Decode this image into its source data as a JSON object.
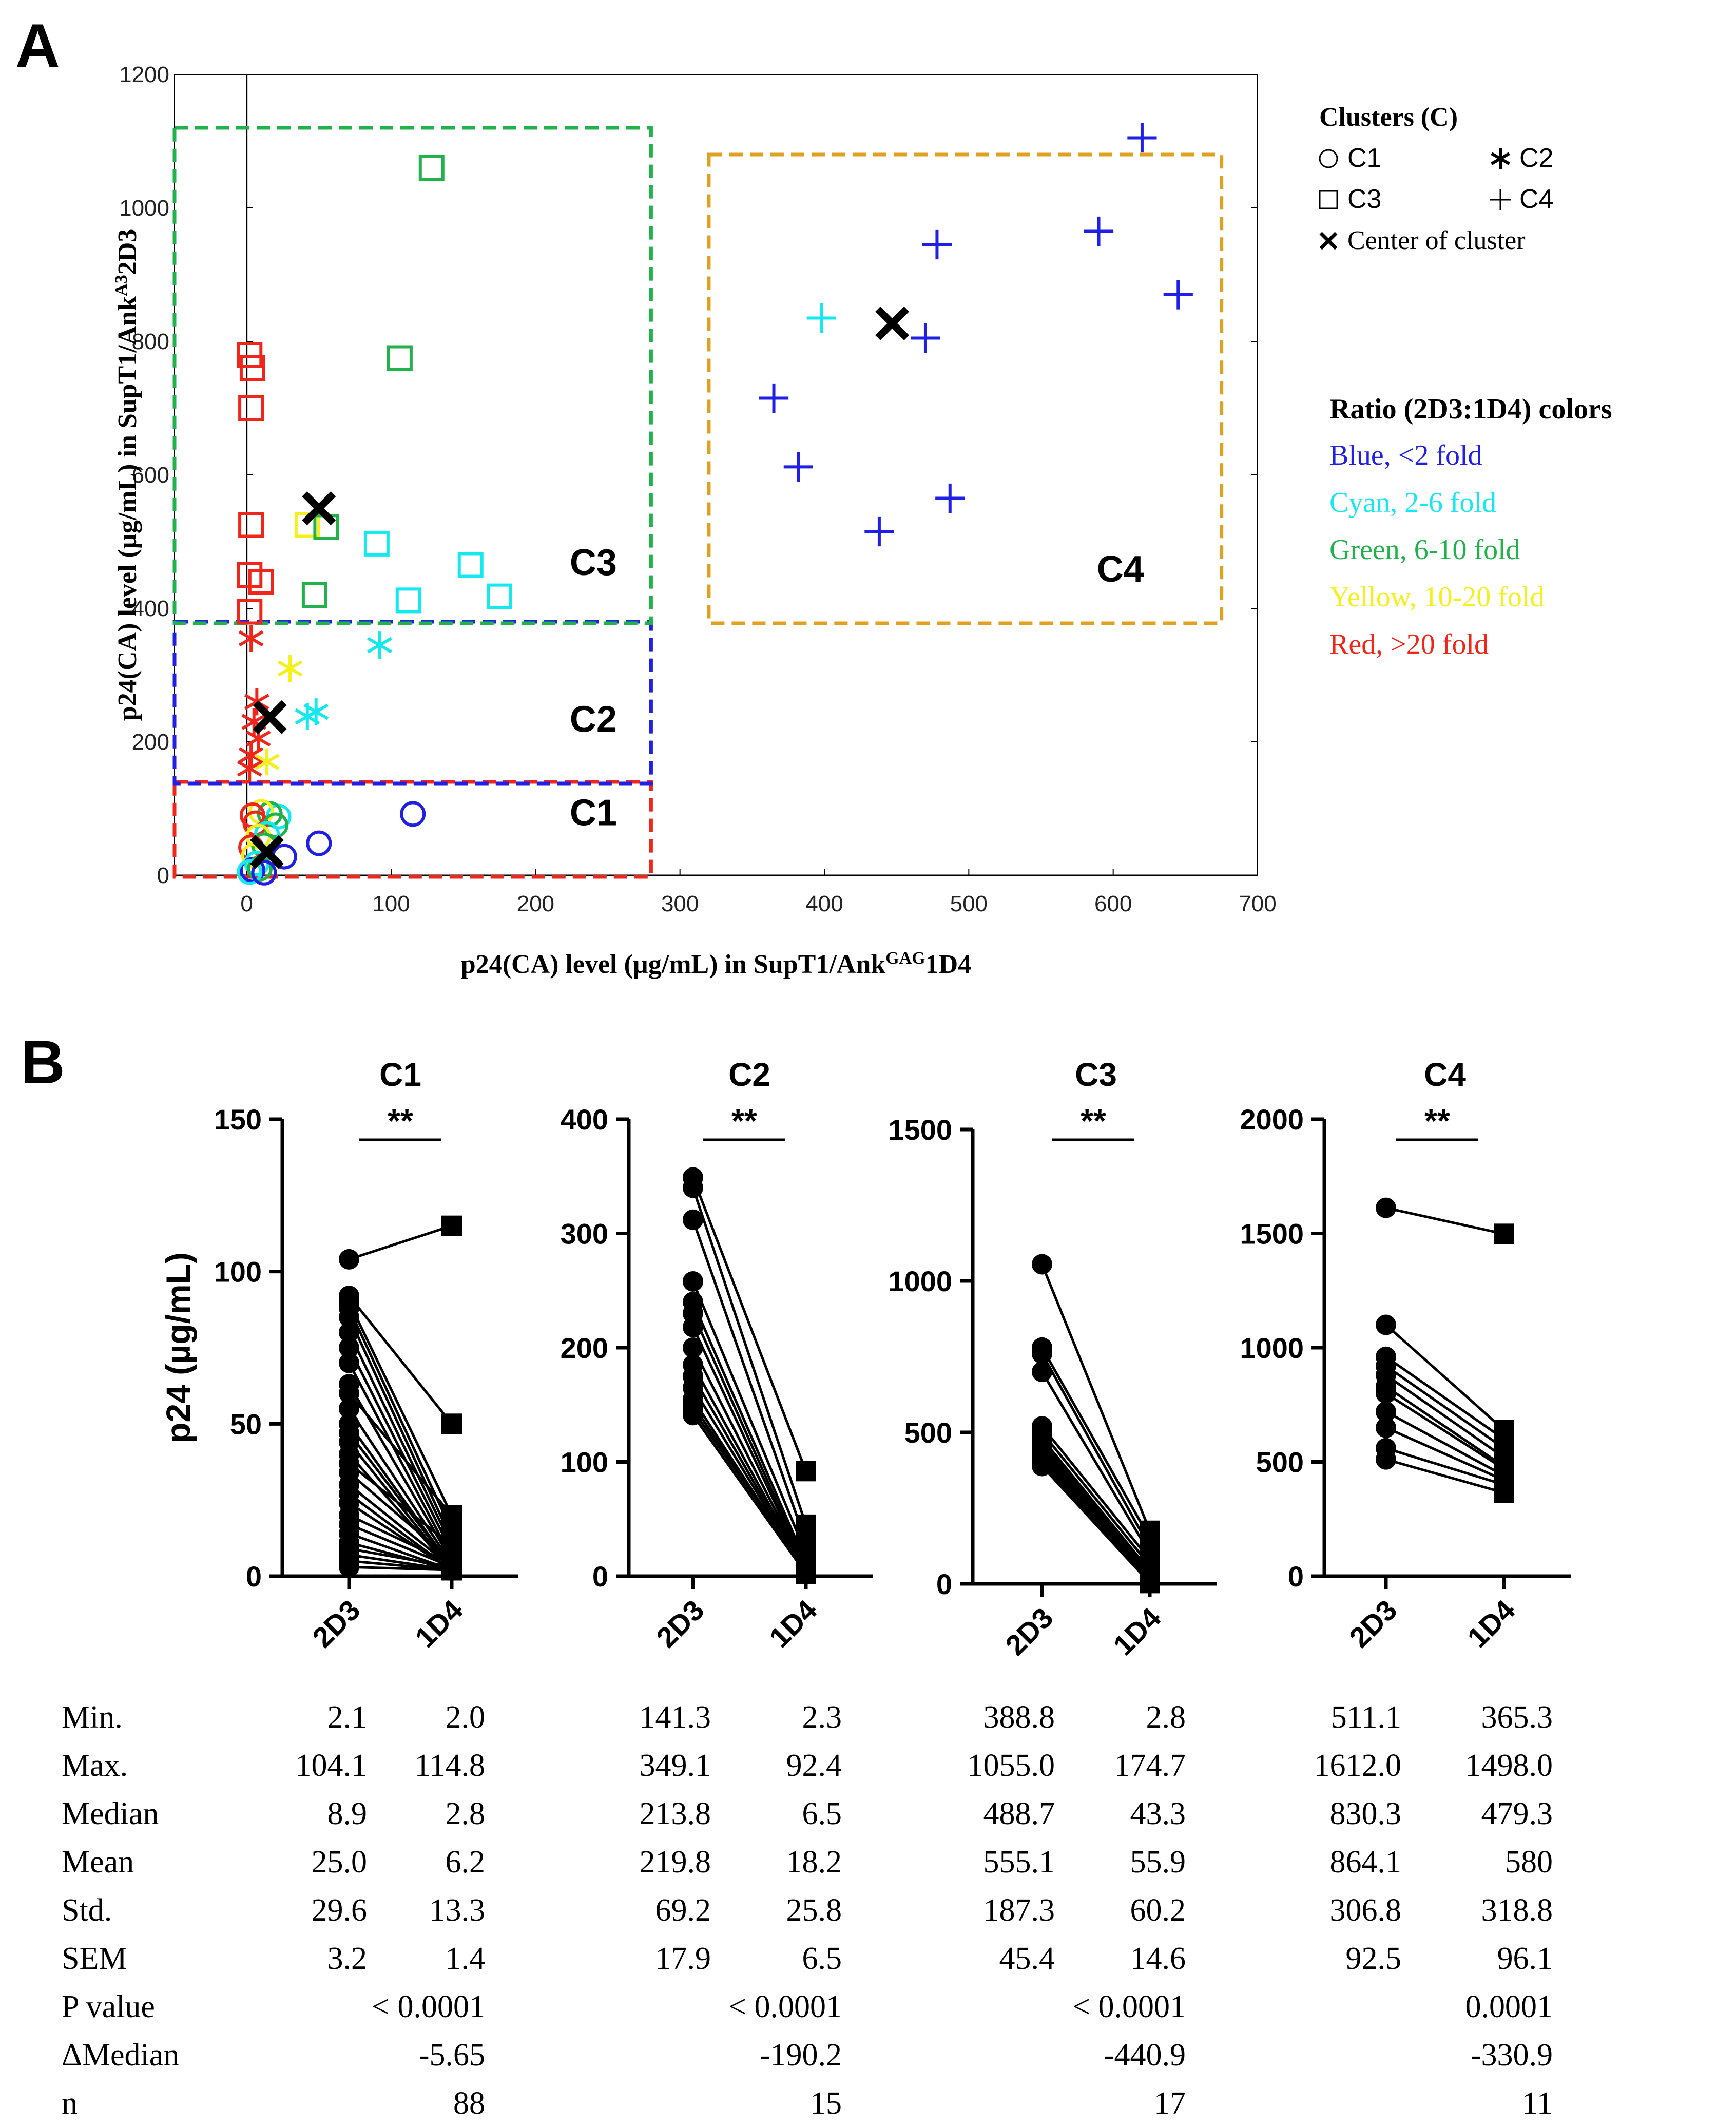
{
  "panel_a": {
    "letter": "A",
    "legend_clusters": {
      "title": "Clusters  (C)",
      "items": [
        {
          "symbol": "circle",
          "label": "C1"
        },
        {
          "symbol": "asterisk",
          "label": "C2"
        },
        {
          "symbol": "square",
          "label": "C3"
        },
        {
          "symbol": "plus",
          "label": "C4"
        },
        {
          "symbol": "x",
          "label": "Center of cluster"
        }
      ]
    },
    "legend_colors": {
      "title": "Ratio (2D3:1D4) colors",
      "items": [
        {
          "label": "Blue, <2 fold",
          "color": "#1f1fe6"
        },
        {
          "label": "Cyan, 2-6 fold",
          "color": "#14e8f0"
        },
        {
          "label": "Green, 6-10 fold",
          "color": "#22b24c"
        },
        {
          "label": "Yellow, 10-20 fold",
          "color": "#f5f01a"
        },
        {
          "label": "Red, >20 fold",
          "color": "#f0261a"
        }
      ]
    }
  },
  "panel_b": {
    "letter": "B",
    "stat_rows": [
      "Min.",
      "Max.",
      "Median",
      "Mean",
      "Std.",
      "SEM",
      "P value",
      "ΔMedian",
      "n"
    ]
  },
  "chart_data": [
    {
      "type": "scatter",
      "xlabel": "p24(CA) level (µg/mL) in SupT1/Ank",
      "xlabel_sup": "GAG",
      "xlabel_tail": "1D4",
      "ylabel": "p24(CA) level (µg/mL) in SupT1/Ank",
      "ylabel_sup": "A3",
      "ylabel_tail": "2D3",
      "xlim": [
        -50,
        700
      ],
      "ylim": [
        0,
        1200
      ],
      "xticks": [
        0,
        100,
        200,
        300,
        400,
        500,
        600,
        700
      ],
      "yticks": [
        0,
        200,
        400,
        600,
        800,
        1000,
        1200
      ],
      "colors": {
        "blue": "#1f1fe6",
        "cyan": "#14e8f0",
        "green": "#22b24c",
        "yellow": "#f5f01a",
        "red": "#f0261a",
        "black": "#000000"
      },
      "cluster_boxes": [
        {
          "label": "C1",
          "color": "#f0261a",
          "x0": -50,
          "x1": 280,
          "y0": 0,
          "y1": 140
        },
        {
          "label": "C2",
          "color": "#1f1fe6",
          "x0": -50,
          "x1": 280,
          "y0": 140,
          "y1": 380
        },
        {
          "label": "C3",
          "color": "#22b24c",
          "x0": -50,
          "x1": 280,
          "y0": 380,
          "y1": 1120
        },
        {
          "label": "C4",
          "color": "#e0a020",
          "x0": 320,
          "x1": 675,
          "y0": 380,
          "y1": 1080
        }
      ],
      "cluster_labels": [
        {
          "text": "C1",
          "x": 240,
          "y": 75
        },
        {
          "text": "C2",
          "x": 240,
          "y": 215
        },
        {
          "text": "C3",
          "x": 240,
          "y": 450
        },
        {
          "text": "C4",
          "x": 605,
          "y": 440
        }
      ],
      "points": [
        {
          "cluster": "C4",
          "color": "blue",
          "x": 620,
          "y": 1105
        },
        {
          "cluster": "C4",
          "color": "blue",
          "x": 590,
          "y": 965
        },
        {
          "cluster": "C4",
          "color": "blue",
          "x": 645,
          "y": 870
        },
        {
          "cluster": "C4",
          "color": "blue",
          "x": 478,
          "y": 945
        },
        {
          "cluster": "C4",
          "color": "blue",
          "x": 470,
          "y": 805
        },
        {
          "cluster": "C4",
          "color": "cyan",
          "x": 398,
          "y": 835
        },
        {
          "cluster": "C4",
          "color": "blue",
          "x": 365,
          "y": 715
        },
        {
          "cluster": "C4",
          "color": "blue",
          "x": 382,
          "y": 612
        },
        {
          "cluster": "C4",
          "color": "blue",
          "x": 487,
          "y": 565
        },
        {
          "cluster": "C4",
          "color": "blue",
          "x": 438,
          "y": 515
        },
        {
          "cluster": "C3",
          "color": "green",
          "x": 128,
          "y": 1060
        },
        {
          "cluster": "C3",
          "color": "green",
          "x": 106,
          "y": 775
        },
        {
          "cluster": "C3",
          "color": "red",
          "x": 2,
          "y": 780
        },
        {
          "cluster": "C3",
          "color": "red",
          "x": 4,
          "y": 760
        },
        {
          "cluster": "C3",
          "color": "red",
          "x": 3,
          "y": 700
        },
        {
          "cluster": "C3",
          "color": "red",
          "x": 3,
          "y": 525
        },
        {
          "cluster": "C3",
          "color": "yellow",
          "x": 42,
          "y": 525
        },
        {
          "cluster": "C3",
          "color": "green",
          "x": 55,
          "y": 522
        },
        {
          "cluster": "C3",
          "color": "cyan",
          "x": 90,
          "y": 497
        },
        {
          "cluster": "C3",
          "color": "cyan",
          "x": 155,
          "y": 465
        },
        {
          "cluster": "C3",
          "color": "red",
          "x": 2,
          "y": 450
        },
        {
          "cluster": "C3",
          "color": "red",
          "x": 10,
          "y": 440
        },
        {
          "cluster": "C3",
          "color": "green",
          "x": 47,
          "y": 420
        },
        {
          "cluster": "C3",
          "color": "cyan",
          "x": 112,
          "y": 412
        },
        {
          "cluster": "C3",
          "color": "cyan",
          "x": 175,
          "y": 418
        },
        {
          "cluster": "C3",
          "color": "red",
          "x": 2,
          "y": 395
        },
        {
          "cluster": "C2",
          "color": "red",
          "x": 3,
          "y": 355
        },
        {
          "cluster": "C2",
          "color": "cyan",
          "x": 92,
          "y": 345
        },
        {
          "cluster": "C2",
          "color": "yellow",
          "x": 30,
          "y": 310
        },
        {
          "cluster": "C2",
          "color": "red",
          "x": 7,
          "y": 260
        },
        {
          "cluster": "C2",
          "color": "cyan",
          "x": 48,
          "y": 245
        },
        {
          "cluster": "C2",
          "color": "cyan",
          "x": 42,
          "y": 238
        },
        {
          "cluster": "C2",
          "color": "red",
          "x": 5,
          "y": 230
        },
        {
          "cluster": "C2",
          "color": "red",
          "x": 8,
          "y": 205
        },
        {
          "cluster": "C2",
          "color": "red",
          "x": 3,
          "y": 180
        },
        {
          "cluster": "C2",
          "color": "yellow",
          "x": 14,
          "y": 170
        },
        {
          "cluster": "C2",
          "color": "red",
          "x": 2,
          "y": 160
        },
        {
          "cluster": "C1",
          "color": "blue",
          "x": 115,
          "y": 92
        },
        {
          "cluster": "C1",
          "color": "blue",
          "x": 50,
          "y": 48
        },
        {
          "cluster": "C1",
          "color": "cyan",
          "x": 22,
          "y": 88
        },
        {
          "cluster": "C1",
          "color": "green",
          "x": 16,
          "y": 92
        },
        {
          "cluster": "C1",
          "color": "yellow",
          "x": 10,
          "y": 95
        },
        {
          "cluster": "C1",
          "color": "red",
          "x": 4,
          "y": 90
        },
        {
          "cluster": "C1",
          "color": "red",
          "x": 6,
          "y": 78
        },
        {
          "cluster": "C1",
          "color": "green",
          "x": 20,
          "y": 75
        },
        {
          "cluster": "C1",
          "color": "cyan",
          "x": 14,
          "y": 62
        },
        {
          "cluster": "C1",
          "color": "yellow",
          "x": 8,
          "y": 58
        },
        {
          "cluster": "C1",
          "color": "green",
          "x": 12,
          "y": 45
        },
        {
          "cluster": "C1",
          "color": "blue",
          "x": 26,
          "y": 28
        },
        {
          "cluster": "C1",
          "color": "red",
          "x": 3,
          "y": 42
        },
        {
          "cluster": "C1",
          "color": "yellow",
          "x": 5,
          "y": 30
        },
        {
          "cluster": "C1",
          "color": "cyan",
          "x": 7,
          "y": 18
        },
        {
          "cluster": "C1",
          "color": "blue",
          "x": 4,
          "y": 8
        },
        {
          "cluster": "C1",
          "color": "green",
          "x": 9,
          "y": 10
        },
        {
          "cluster": "C1",
          "color": "cyan",
          "x": 2,
          "y": 5
        },
        {
          "cluster": "C1",
          "color": "blue",
          "x": 12,
          "y": 4
        }
      ],
      "centers": [
        {
          "cluster": "C3",
          "x": 50,
          "y": 550
        },
        {
          "cluster": "C2",
          "x": 16,
          "y": 237
        },
        {
          "cluster": "C1",
          "x": 14,
          "y": 35
        },
        {
          "cluster": "C4",
          "x": 447,
          "y": 827
        }
      ]
    },
    {
      "type": "line",
      "title": "C1",
      "ylabel": "p24 (µg/mL)",
      "categories": [
        "2D3",
        "1D4"
      ],
      "ylim": [
        0,
        150
      ],
      "yticks": [
        0,
        50,
        100,
        150
      ],
      "significance": "**",
      "pairs": [
        [
          104,
          115
        ],
        [
          92,
          50
        ],
        [
          90,
          20
        ],
        [
          88,
          15
        ],
        [
          85,
          12
        ],
        [
          80,
          10
        ],
        [
          75,
          8
        ],
        [
          70,
          6
        ],
        [
          63,
          5
        ],
        [
          60,
          20
        ],
        [
          55,
          4
        ],
        [
          50,
          3
        ],
        [
          47,
          3
        ],
        [
          44,
          2
        ],
        [
          40,
          2
        ],
        [
          37,
          10
        ],
        [
          34,
          5
        ],
        [
          30,
          3
        ],
        [
          27,
          2
        ],
        [
          24,
          2
        ],
        [
          20,
          4
        ],
        [
          17,
          3
        ],
        [
          14,
          2
        ],
        [
          11,
          2
        ],
        [
          9,
          3
        ],
        [
          7,
          2
        ],
        [
          5,
          2
        ],
        [
          3,
          2
        ]
      ],
      "stats": {
        "Min.": "2.1|2.0",
        "Max.": "104.1|114.8",
        "Median": "8.9|2.8",
        "Mean": "25.0|6.2",
        "Std.": "29.6|13.3",
        "SEM": "3.2|1.4"
      },
      "stats_2d3": [
        "2.1",
        "104.1",
        "8.9",
        "25.0",
        "29.6",
        "3.2"
      ],
      "stats_1d4": [
        "2.0",
        "114.8",
        "2.8",
        "6.2",
        "13.3",
        "1.4"
      ],
      "p_value": "< 0.0001",
      "delta_median": "-5.65",
      "n": "88"
    },
    {
      "type": "line",
      "title": "C2",
      "categories": [
        "2D3",
        "1D4"
      ],
      "ylim": [
        0,
        400
      ],
      "yticks": [
        0,
        100,
        200,
        300,
        400
      ],
      "significance": "**",
      "pairs": [
        [
          349,
          92
        ],
        [
          340,
          45
        ],
        [
          312,
          30
        ],
        [
          258,
          20
        ],
        [
          240,
          12
        ],
        [
          230,
          8
        ],
        [
          218,
          6
        ],
        [
          200,
          5
        ],
        [
          185,
          4
        ],
        [
          175,
          3
        ],
        [
          165,
          3
        ],
        [
          155,
          2.5
        ],
        [
          150,
          2.3
        ],
        [
          145,
          6
        ],
        [
          141,
          2.3
        ]
      ],
      "stats_2d3": [
        "141.3",
        "349.1",
        "213.8",
        "219.8",
        "69.2",
        "17.9"
      ],
      "stats_1d4": [
        "2.3",
        "92.4",
        "6.5",
        "18.2",
        "25.8",
        "6.5"
      ],
      "p_value": "< 0.0001",
      "delta_median": "-190.2",
      "n": "15"
    },
    {
      "type": "line",
      "title": "C3",
      "categories": [
        "2D3",
        "1D4"
      ],
      "ylim": [
        0,
        1500
      ],
      "yticks": [
        0,
        500,
        1000,
        1500
      ],
      "significance": "**",
      "pairs": [
        [
          1055,
          175
        ],
        [
          780,
          150
        ],
        [
          760,
          120
        ],
        [
          700,
          100
        ],
        [
          520,
          80
        ],
        [
          500,
          60
        ],
        [
          480,
          43
        ],
        [
          470,
          40
        ],
        [
          460,
          30
        ],
        [
          450,
          25
        ],
        [
          440,
          20
        ],
        [
          430,
          15
        ],
        [
          420,
          10
        ],
        [
          410,
          8
        ],
        [
          400,
          5
        ],
        [
          395,
          3
        ],
        [
          389,
          3
        ]
      ],
      "stats_2d3": [
        "388.8",
        "1055.0",
        "488.7",
        "555.1",
        "187.3",
        "45.4"
      ],
      "stats_1d4": [
        "2.8",
        "174.7",
        "43.3",
        "55.9",
        "60.2",
        "14.6"
      ],
      "p_value": "< 0.0001",
      "delta_median": "-440.9",
      "n": "17"
    },
    {
      "type": "line",
      "title": "C4",
      "categories": [
        "2D3",
        "1D4"
      ],
      "ylim": [
        0,
        2000
      ],
      "yticks": [
        0,
        500,
        1000,
        1500,
        2000
      ],
      "significance": "**",
      "pairs": [
        [
          1612,
          1498
        ],
        [
          1100,
          640
        ],
        [
          960,
          600
        ],
        [
          920,
          560
        ],
        [
          880,
          520
        ],
        [
          830,
          480
        ],
        [
          800,
          470
        ],
        [
          720,
          440
        ],
        [
          650,
          420
        ],
        [
          560,
          400
        ],
        [
          511,
          365
        ]
      ],
      "stats_2d3": [
        "511.1",
        "1612.0",
        "830.3",
        "864.1",
        "306.8",
        "92.5"
      ],
      "stats_1d4": [
        "365.3",
        "1498.0",
        "479.3",
        "580",
        "318.8",
        "96.1"
      ],
      "p_value": "0.0001",
      "delta_median": "-330.9",
      "n": "11"
    }
  ]
}
